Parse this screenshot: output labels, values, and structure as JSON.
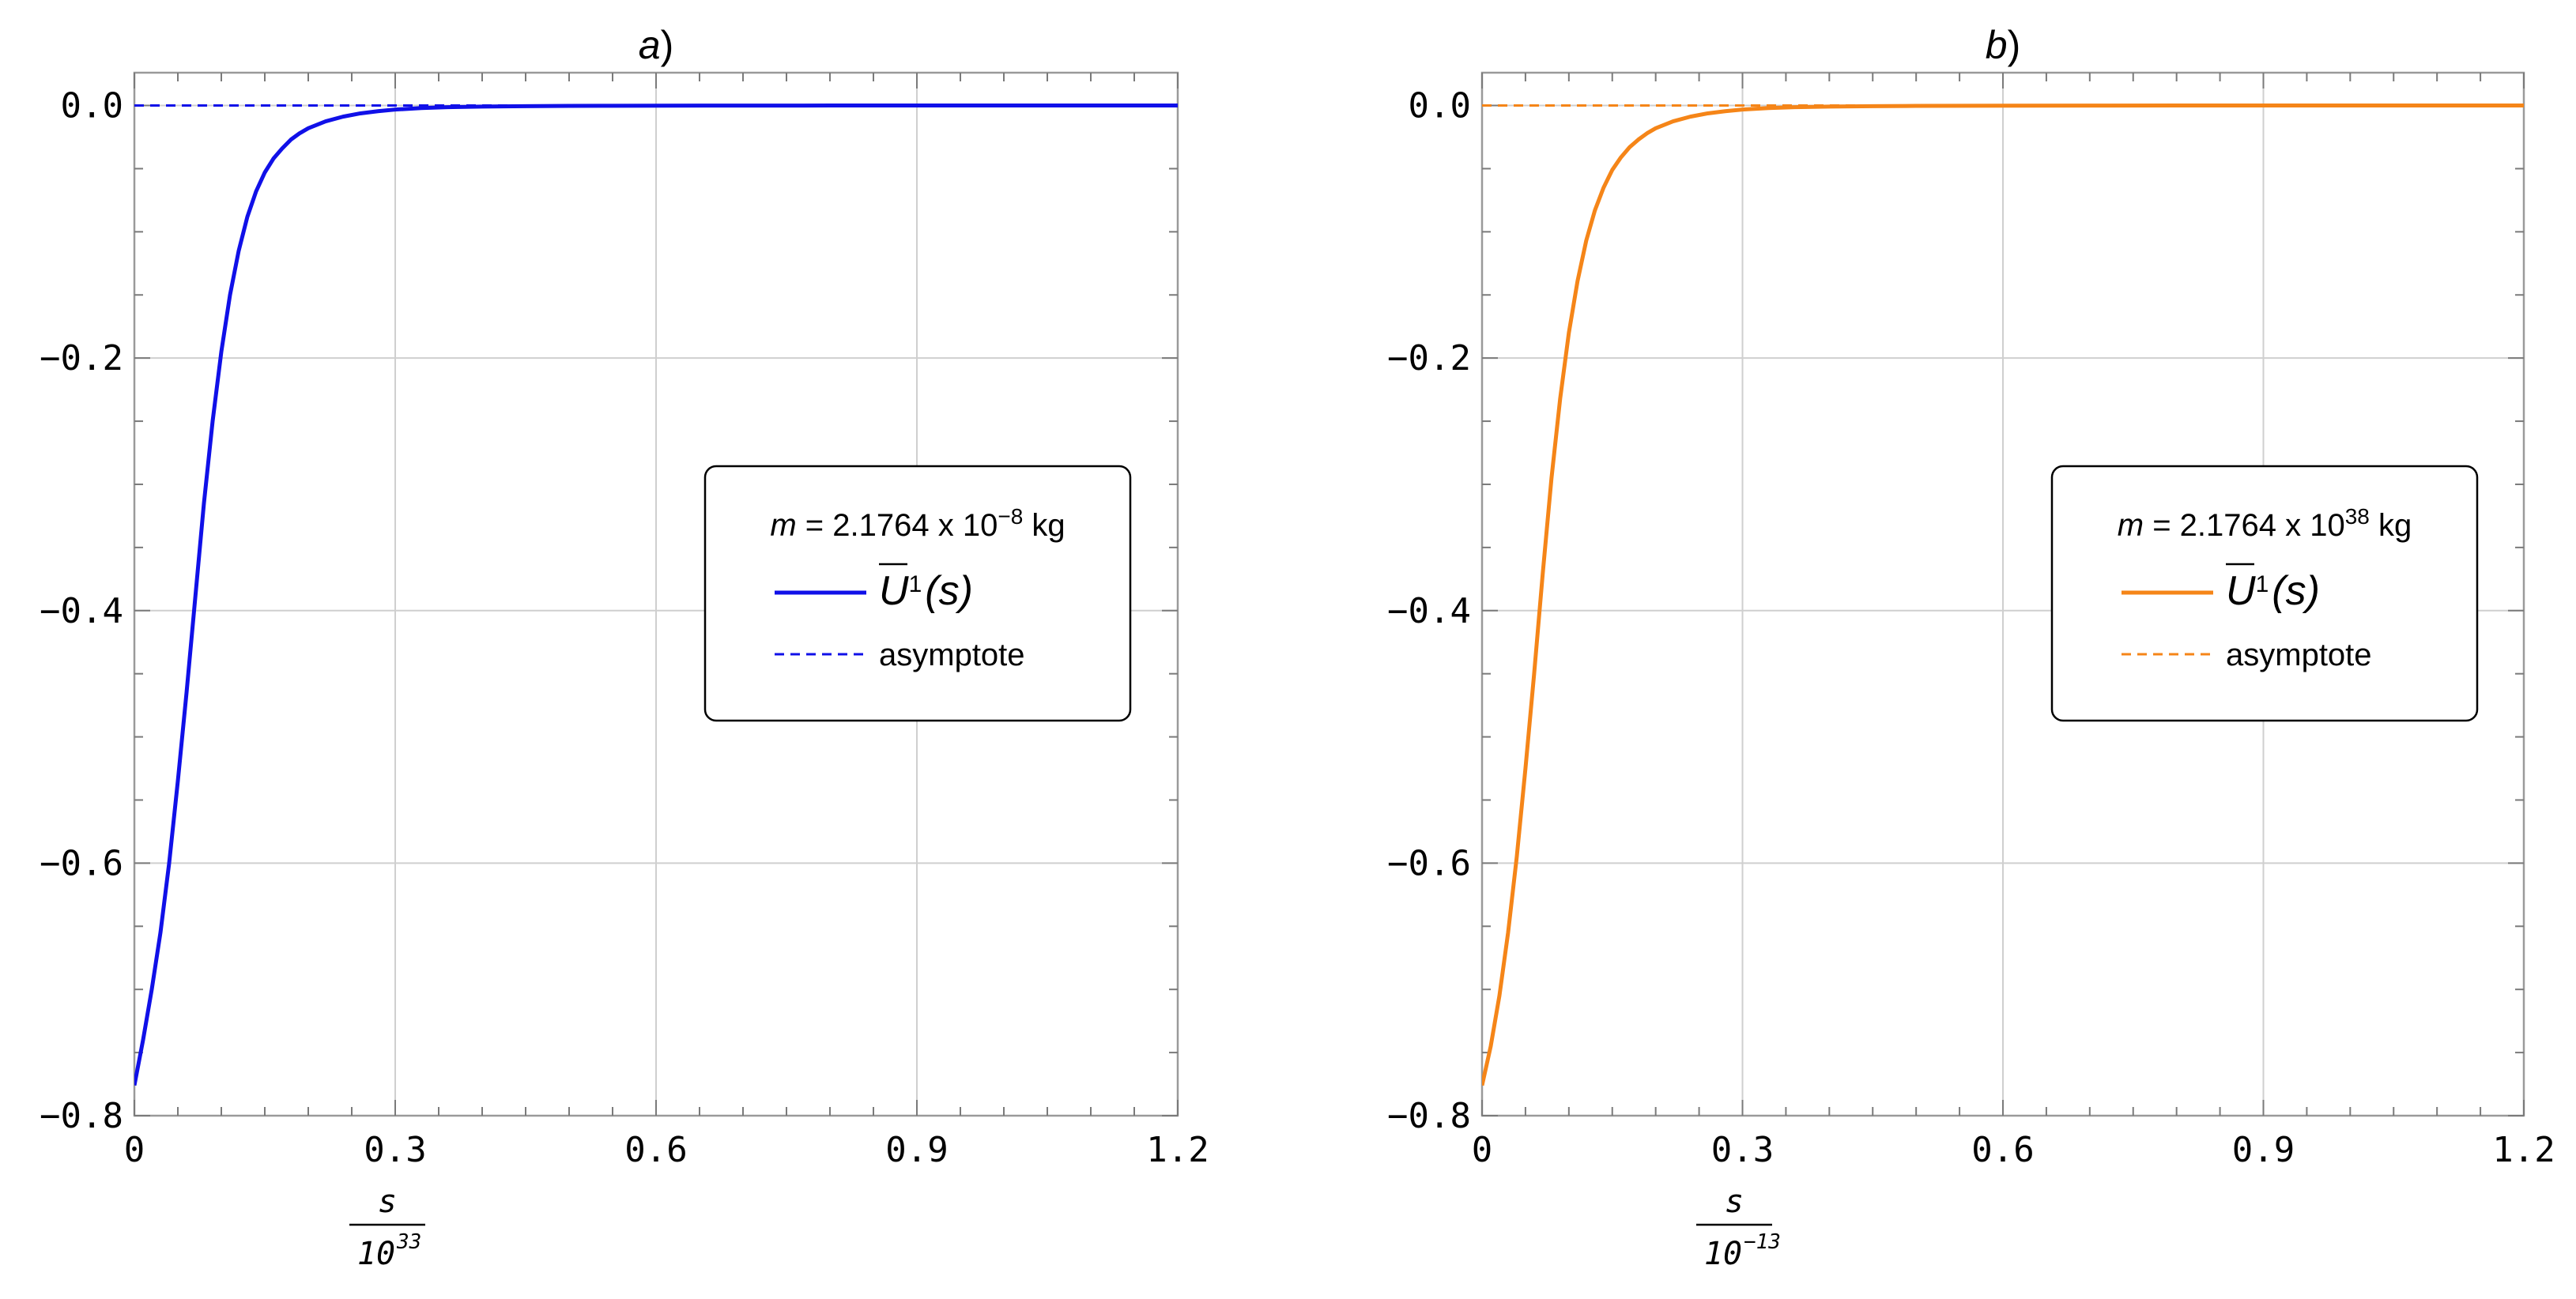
{
  "chart_data": [
    {
      "type": "line",
      "title": "a)",
      "xlabel_numerator": "s",
      "xlabel_denominator": "10",
      "xlabel_denominator_exp": "33",
      "ylabel": "",
      "xlim": [
        0,
        1.2
      ],
      "ylim": [
        -0.8,
        0.026
      ],
      "xticks": [
        0,
        0.3,
        0.6,
        0.9,
        1.2
      ],
      "xtick_labels": [
        "0",
        "0.3",
        "0.6",
        "0.9",
        "1.2"
      ],
      "yticks": [
        0.0,
        -0.2,
        -0.4,
        -0.6,
        -0.8
      ],
      "ytick_labels": [
        "0.0",
        "−0.2",
        "−0.4",
        "−0.6",
        "−0.8"
      ],
      "grid": true,
      "legend_position": "center-right",
      "legend": {
        "title_var": "m",
        "title_text": " = 2.1764 x 10",
        "title_exp": "−8",
        "title_unit": " kg",
        "entry1_main": "U",
        "entry1_sup": "1",
        "entry1_arg": "(s)",
        "entry2": "asymptote"
      },
      "color": "#1010e8",
      "series": [
        {
          "x": [
            0,
            0.01,
            0.02,
            0.03,
            0.04,
            0.05,
            0.06,
            0.07,
            0.08,
            0.09,
            0.1,
            0.11,
            0.12,
            0.13,
            0.14,
            0.15,
            0.16,
            0.17,
            0.18,
            0.19,
            0.2,
            0.22,
            0.24,
            0.26,
            0.28,
            0.3,
            0.33,
            0.36,
            0.4,
            0.45,
            0.5,
            0.55,
            0.6,
            0.7,
            0.8,
            0.9,
            1.0,
            1.1,
            1.2
          ],
          "y": [
            -0.776,
            -0.74,
            -0.7,
            -0.655,
            -0.6,
            -0.535,
            -0.465,
            -0.39,
            -0.315,
            -0.25,
            -0.195,
            -0.15,
            -0.115,
            -0.088,
            -0.068,
            -0.053,
            -0.042,
            -0.034,
            -0.027,
            -0.022,
            -0.018,
            -0.0125,
            -0.0088,
            -0.0062,
            -0.0045,
            -0.0032,
            -0.002,
            -0.0013,
            -0.0008,
            -0.0005,
            -0.0003,
            -0.0002,
            -0.0001,
            -5e-05,
            0,
            0,
            0,
            0,
            0
          ]
        },
        {
          "style": "dashed",
          "x": [
            0,
            1.2
          ],
          "y": [
            0,
            0
          ]
        }
      ]
    },
    {
      "type": "line",
      "title": "b)",
      "xlabel_numerator": "s",
      "xlabel_denominator": "10",
      "xlabel_denominator_exp": "−13",
      "ylabel": "",
      "xlim": [
        0,
        1.2
      ],
      "ylim": [
        -0.8,
        0.026
      ],
      "xticks": [
        0,
        0.3,
        0.6,
        0.9,
        1.2
      ],
      "xtick_labels": [
        "0",
        "0.3",
        "0.6",
        "0.9",
        "1.2"
      ],
      "yticks": [
        0.0,
        -0.2,
        -0.4,
        -0.6,
        -0.8
      ],
      "ytick_labels": [
        "0.0",
        "−0.2",
        "−0.4",
        "−0.6",
        "−0.8"
      ],
      "grid": true,
      "legend_position": "center-right",
      "legend": {
        "title_var": "m",
        "title_text": " = 2.1764 x 10",
        "title_exp": "38",
        "title_unit": " kg",
        "entry1_main": "U",
        "entry1_sup": "1",
        "entry1_arg": "(s)",
        "entry2": "asymptote"
      },
      "color": "#f58518",
      "series": [
        {
          "x": [
            0,
            0.01,
            0.02,
            0.03,
            0.04,
            0.05,
            0.06,
            0.07,
            0.08,
            0.09,
            0.1,
            0.11,
            0.12,
            0.13,
            0.14,
            0.15,
            0.16,
            0.17,
            0.18,
            0.19,
            0.2,
            0.22,
            0.24,
            0.26,
            0.28,
            0.3,
            0.33,
            0.36,
            0.4,
            0.45,
            0.5,
            0.55,
            0.6,
            0.7,
            0.8,
            0.9,
            1.0,
            1.1,
            1.2
          ],
          "y": [
            -0.776,
            -0.745,
            -0.705,
            -0.655,
            -0.595,
            -0.525,
            -0.45,
            -0.37,
            -0.295,
            -0.232,
            -0.18,
            -0.139,
            -0.107,
            -0.083,
            -0.065,
            -0.051,
            -0.041,
            -0.033,
            -0.027,
            -0.022,
            -0.018,
            -0.0125,
            -0.0088,
            -0.0062,
            -0.0045,
            -0.0032,
            -0.002,
            -0.0013,
            -0.0008,
            -0.0005,
            -0.0003,
            -0.0002,
            -0.0001,
            -5e-05,
            0,
            0,
            0,
            0,
            0
          ]
        },
        {
          "style": "dashed",
          "x": [
            0,
            1.2
          ],
          "y": [
            0,
            0
          ]
        }
      ]
    }
  ]
}
